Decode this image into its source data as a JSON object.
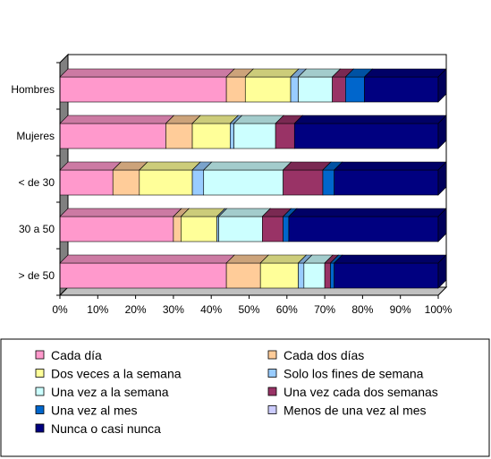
{
  "chart_data": {
    "type": "bar",
    "orientation": "horizontal",
    "stacked": "percent",
    "three_d": true,
    "title": "",
    "xlabel": "",
    "ylabel": "",
    "xlim": [
      0,
      100
    ],
    "x_ticks": [
      "0%",
      "10%",
      "20%",
      "30%",
      "40%",
      "50%",
      "60%",
      "70%",
      "80%",
      "90%",
      "100%"
    ],
    "grid": false,
    "legend_position": "bottom",
    "categories": [
      "Hombres",
      "Mujeres",
      "< de 30",
      "30 a 50",
      "> de 50"
    ],
    "series": [
      {
        "name": "Cada día",
        "color": "#ff99cc",
        "values": [
          44,
          28,
          14,
          30,
          44
        ]
      },
      {
        "name": "Cada dos días",
        "color": "#ffcc99",
        "values": [
          5,
          7,
          7,
          2,
          9
        ]
      },
      {
        "name": "Dos veces a la semana",
        "color": "#ffff99",
        "values": [
          12,
          10,
          14,
          9.5,
          10
        ]
      },
      {
        "name": "Solo los fines de semana",
        "color": "#99ccff",
        "values": [
          2,
          1,
          3,
          0.5,
          1.5
        ]
      },
      {
        "name": "Una vez a la semana",
        "color": "#ccffff",
        "values": [
          9,
          11,
          21,
          11.5,
          5.5
        ]
      },
      {
        "name": "Una vez cada dos semanas",
        "color": "#993366",
        "values": [
          3.5,
          5,
          10.5,
          5.5,
          1.5
        ]
      },
      {
        "name": "Una vez al mes",
        "color": "#0066cc",
        "values": [
          5,
          0,
          3,
          1.5,
          1
        ]
      },
      {
        "name": "Menos de una vez al mes",
        "color": "#ccccff",
        "values": [
          0,
          0,
          0,
          0,
          0
        ]
      },
      {
        "name": "Nunca o casi nunca",
        "color": "#000080",
        "values": [
          19.5,
          38,
          27.5,
          39.5,
          27.5
        ]
      }
    ]
  }
}
